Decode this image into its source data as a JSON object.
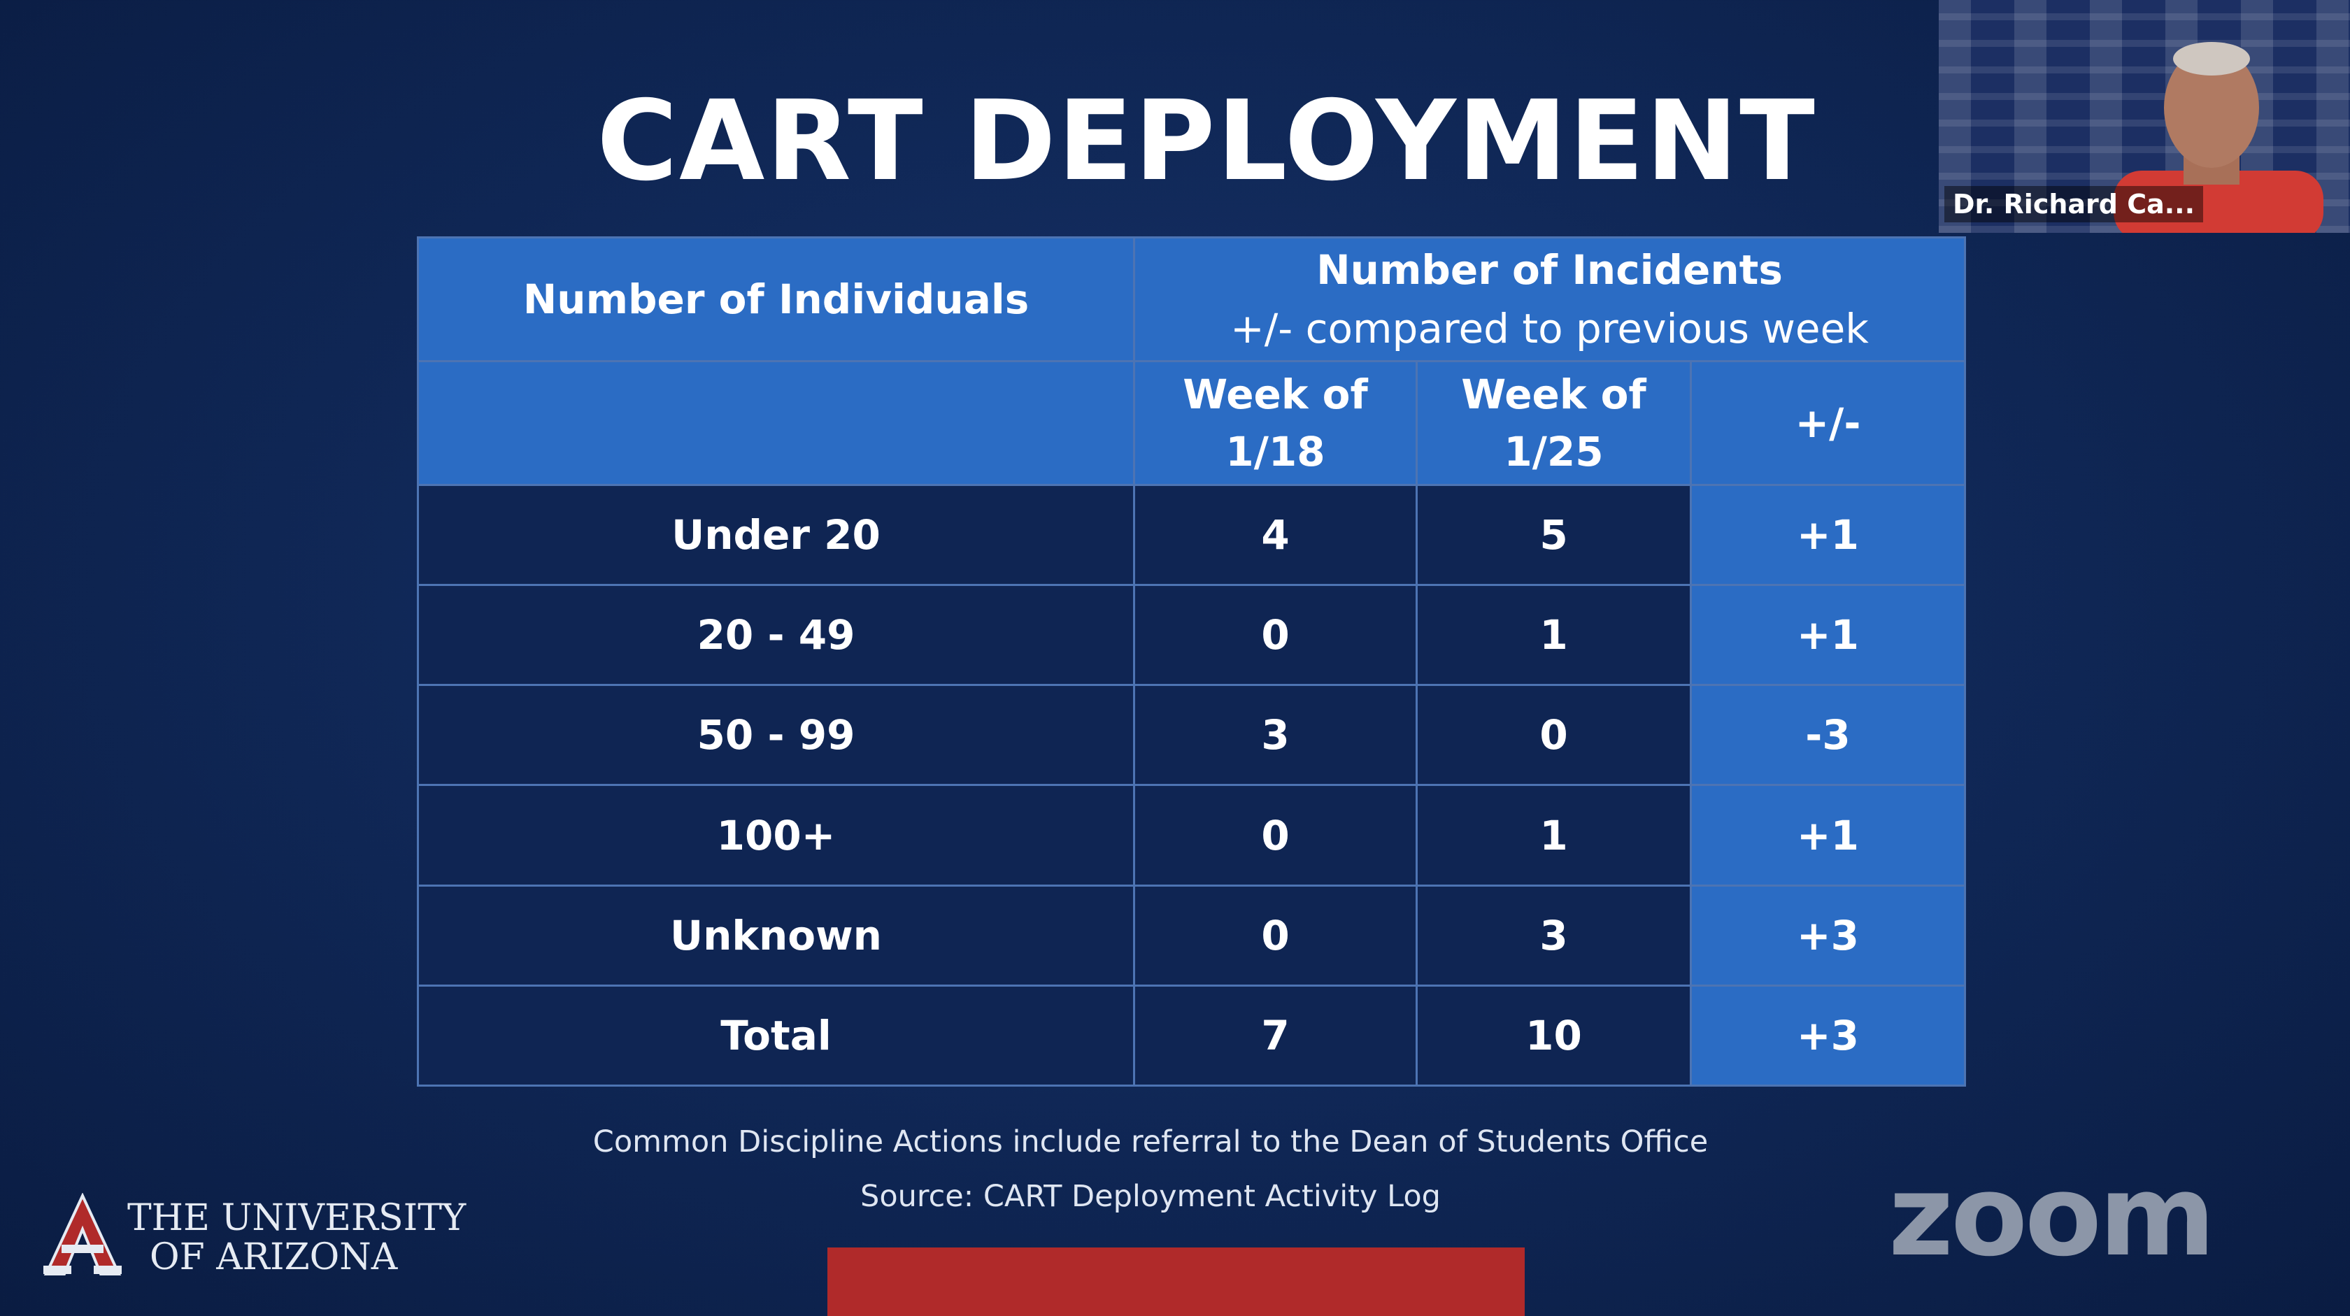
{
  "slide": {
    "title": "CART DEPLOYMENT",
    "table": {
      "header_individuals": "Number of Individuals",
      "header_incidents": "Number of Incidents",
      "header_incidents_sub": "+/- compared to previous week",
      "col_week1": [
        "Week of",
        "1/18"
      ],
      "col_week2": [
        "Week of",
        "1/25"
      ],
      "col_change": "+/-",
      "rows": [
        {
          "label": "Under 20",
          "week1": "4",
          "week2": "5",
          "change": "+1"
        },
        {
          "label": "20 - 49",
          "week1": "0",
          "week2": "1",
          "change": "+1"
        },
        {
          "label": "50 - 99",
          "week1": "3",
          "week2": "0",
          "change": "-3"
        },
        {
          "label": "100+",
          "week1": "0",
          "week2": "1",
          "change": "+1"
        },
        {
          "label": "Unknown",
          "week1": "0",
          "week2": "3",
          "change": "+3"
        },
        {
          "label": "Total",
          "week1": "7",
          "week2": "10",
          "change": "+3"
        }
      ]
    },
    "footer_note": "Common Discipline Actions include referral to the Dean of Students Office",
    "footer_source": "Source: CART Deployment Activity Log",
    "logo": {
      "line1": "THE UNIVERSITY",
      "line2": "OF ARIZONA",
      "icon": "university-a-logo"
    }
  },
  "zoom": {
    "watermark": "zoom",
    "participant_name": "Dr. Richard Ca..."
  },
  "colors": {
    "background": "#0f2654",
    "header_blue": "#2b6cc4",
    "dark_cell": "#0f2553",
    "accent_red": "#b02a2a"
  }
}
